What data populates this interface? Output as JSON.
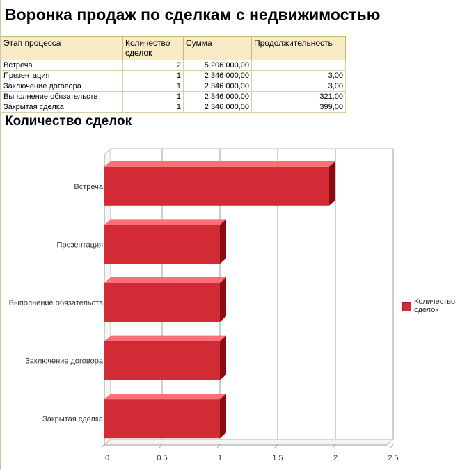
{
  "report": {
    "title": "Воронка продаж по сделкам с недвижимостью"
  },
  "table": {
    "headers": [
      "Этап процесса",
      "Количество сделок",
      "Сумма",
      "Продолжительность"
    ],
    "rows": [
      [
        "Встреча",
        "2",
        "5 206 000,00",
        ""
      ],
      [
        "Презентация",
        "1",
        "2 346 000,00",
        "3,00"
      ],
      [
        "Заключение договора",
        "1",
        "2 346 000,00",
        "3,00"
      ],
      [
        "Выполнение обязательств",
        "1",
        "2 346 000,00",
        "321,00"
      ],
      [
        "Закрытая сделка",
        "1",
        "2 346 000,00",
        "399,00"
      ]
    ]
  },
  "chart_data": {
    "type": "bar",
    "orientation": "horizontal",
    "title": "Количество сделок",
    "categories": [
      "Встреча",
      "Презентация",
      "Выполнение обязательств",
      "Заключение договора",
      "Закрытая сделка"
    ],
    "series": [
      {
        "name": "Количество сделок",
        "values": [
          2,
          1,
          1,
          1,
          1
        ],
        "color": "#d32b35"
      }
    ],
    "xlim": [
      0,
      2.5
    ],
    "xticks": [
      "0",
      "0.5",
      "1",
      "1.5",
      "2",
      "2.5"
    ],
    "grid": true,
    "legend": "right",
    "style": "3d"
  }
}
